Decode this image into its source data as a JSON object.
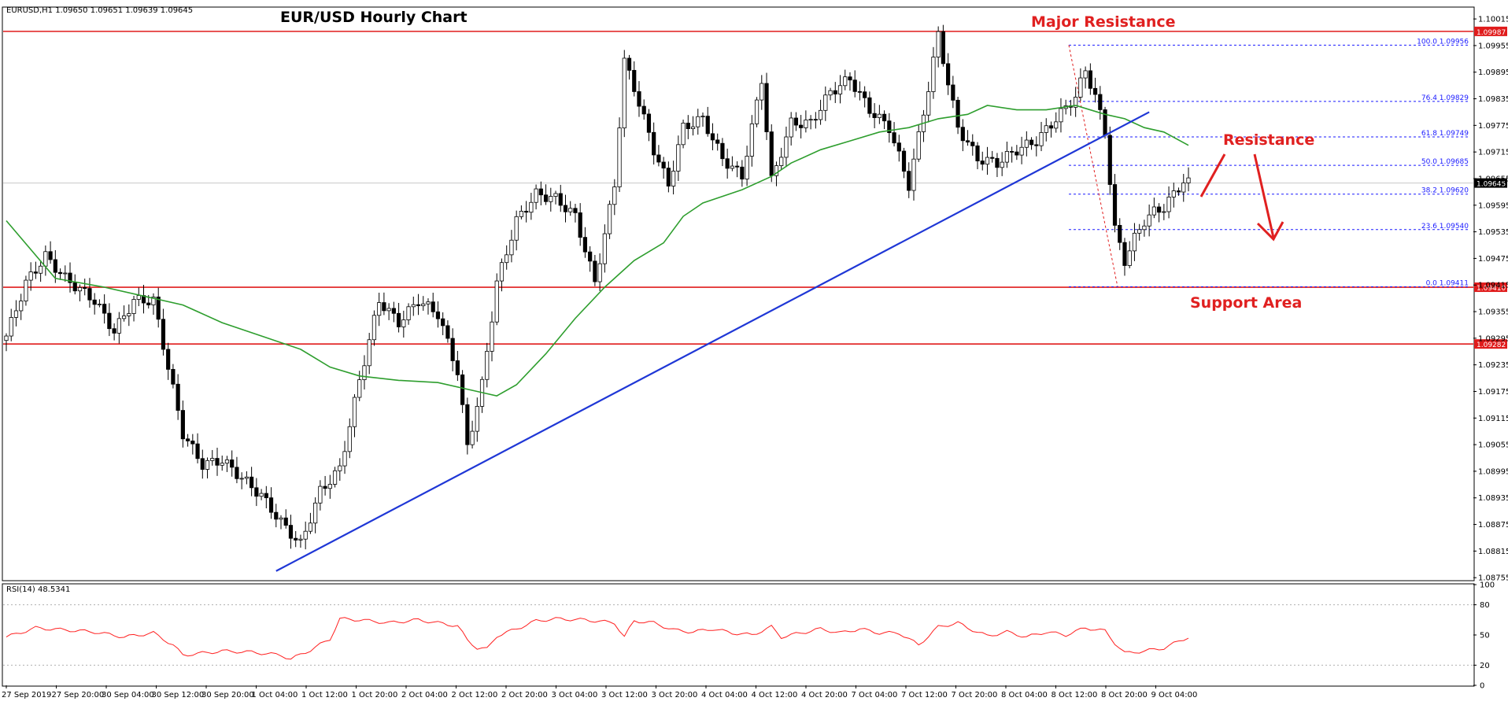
{
  "window": {
    "header": "EURUSD,H1  1.09650 1.09651 1.09639 1.09645",
    "title": "EUR/USD Hourly Chart"
  },
  "annotations": {
    "major_resistance": "Major Resistance",
    "resistance": "Resistance",
    "support_area": "Support Area"
  },
  "colors": {
    "bull": "#ffffff",
    "bear": "#000000",
    "wick": "#000000",
    "ma": "#2e9e2e",
    "trendline": "#1f37d6",
    "horizontal": "#e01b1b",
    "fib": "#1a1aff",
    "rsi": "#ff2020",
    "annotation": "#e02020"
  },
  "chart_data": [
    {
      "type": "candlestick",
      "symbol": "EURUSD",
      "timeframe": "H1",
      "ylim": [
        1.0875,
        1.1004
      ],
      "y_ticks": [
        "1.10015",
        "1.09955",
        "1.09895",
        "1.09835",
        "1.09775",
        "1.09715",
        "1.09655",
        "1.09595",
        "1.09535",
        "1.09475",
        "1.09415",
        "1.09355",
        "1.09295",
        "1.09235",
        "1.09175",
        "1.09115",
        "1.09055",
        "1.08995",
        "1.08935",
        "1.08875",
        "1.08815",
        "1.08755"
      ],
      "x_ticks": [
        "27 Sep 2019",
        "27 Sep 20:00",
        "30 Sep 04:00",
        "30 Sep 12:00",
        "30 Sep 20:00",
        "1 Oct 04:00",
        "1 Oct 12:00",
        "1 Oct 20:00",
        "2 Oct 04:00",
        "2 Oct 12:00",
        "2 Oct 20:00",
        "3 Oct 04:00",
        "3 Oct 12:00",
        "3 Oct 20:00",
        "4 Oct 04:00",
        "4 Oct 12:00",
        "4 Oct 20:00",
        "7 Oct 04:00",
        "7 Oct 12:00",
        "7 Oct 20:00",
        "8 Oct 04:00",
        "8 Oct 12:00",
        "8 Oct 20:00",
        "9 Oct 04:00"
      ],
      "ohlc_anchors": [
        [
          0,
          1.0924,
          1.093
        ],
        [
          4,
          1.0936,
          1.0942
        ],
        [
          8,
          1.0944,
          1.0948
        ],
        [
          12,
          1.094,
          1.0943
        ],
        [
          18,
          1.0943,
          1.0938
        ],
        [
          22,
          1.0938,
          1.0931
        ],
        [
          26,
          1.0934,
          1.0938
        ],
        [
          30,
          1.0944,
          1.0938
        ],
        [
          34,
          1.0936,
          1.0918
        ],
        [
          36,
          1.0918,
          1.0908
        ],
        [
          40,
          1.0905,
          1.0901
        ],
        [
          44,
          1.09,
          1.0902
        ],
        [
          48,
          1.09,
          1.0898
        ],
        [
          52,
          1.0897,
          1.0894
        ],
        [
          56,
          1.0887,
          1.0888
        ],
        [
          60,
          1.0886,
          1.0883
        ],
        [
          64,
          1.0888,
          1.0895
        ],
        [
          68,
          1.0896,
          1.09
        ],
        [
          72,
          1.0888,
          1.092
        ],
        [
          76,
          1.093,
          1.0938
        ],
        [
          80,
          1.0938,
          1.0933
        ],
        [
          84,
          1.0933,
          1.0938
        ],
        [
          88,
          1.0937,
          1.0935
        ],
        [
          92,
          1.0933,
          1.0922
        ],
        [
          94,
          1.0922,
          1.0905
        ],
        [
          97,
          1.0914,
          1.0919
        ],
        [
          100,
          1.0922,
          1.0942
        ],
        [
          104,
          1.0948,
          1.0956
        ],
        [
          108,
          1.0958,
          1.0962
        ],
        [
          112,
          1.096,
          1.0961
        ],
        [
          116,
          1.096,
          1.0957
        ],
        [
          120,
          1.0956,
          1.0942
        ],
        [
          124,
          1.0944,
          1.0964
        ],
        [
          126,
          1.097,
          1.0992
        ],
        [
          128,
          1.099,
          1.0986
        ],
        [
          132,
          1.098,
          1.0972
        ],
        [
          135,
          1.097,
          1.0964
        ],
        [
          138,
          1.097,
          1.0977
        ],
        [
          142,
          1.098,
          1.0979
        ],
        [
          146,
          1.0979,
          1.097
        ],
        [
          150,
          1.0972,
          1.0966
        ],
        [
          154,
          1.097,
          1.0988
        ],
        [
          156,
          1.0988,
          1.0965
        ],
        [
          160,
          1.0965,
          1.0978
        ],
        [
          164,
          1.0982,
          1.0978
        ],
        [
          168,
          1.098,
          1.0985
        ],
        [
          172,
          1.0987,
          1.0988
        ],
        [
          176,
          1.0984,
          1.0981
        ],
        [
          180,
          1.098,
          1.0977
        ],
        [
          184,
          1.0976,
          1.0964
        ],
        [
          188,
          1.097,
          1.0986
        ],
        [
          190,
          1.099,
          1.0998
        ],
        [
          192,
          1.0996,
          1.0987
        ],
        [
          194,
          1.0984,
          1.0977
        ],
        [
          198,
          1.0975,
          1.097
        ],
        [
          202,
          1.097,
          1.0969
        ],
        [
          206,
          1.097,
          1.0972
        ],
        [
          210,
          1.0972,
          1.0974
        ],
        [
          214,
          1.0976,
          1.0979
        ],
        [
          218,
          1.098,
          1.0984
        ],
        [
          220,
          1.0988,
          1.099
        ],
        [
          222,
          1.0988,
          1.0984
        ],
        [
          224,
          1.0981,
          1.0976
        ],
        [
          226,
          1.0972,
          1.0954
        ],
        [
          228,
          1.0952,
          1.0947
        ],
        [
          230,
          1.0948,
          1.0952
        ],
        [
          232,
          1.0954,
          1.0956
        ],
        [
          234,
          1.0955,
          1.0958
        ],
        [
          236,
          1.0957,
          1.0959
        ],
        [
          238,
          1.096,
          1.0962
        ],
        [
          240,
          1.0962,
          1.0965
        ],
        [
          241,
          1.0965,
          1.09645
        ]
      ],
      "moving_average": [
        [
          0,
          1.0956
        ],
        [
          10,
          1.0943
        ],
        [
          20,
          1.0941
        ],
        [
          28,
          1.0939
        ],
        [
          36,
          1.0937
        ],
        [
          44,
          1.0933
        ],
        [
          52,
          1.093
        ],
        [
          60,
          1.0927
        ],
        [
          66,
          1.0923
        ],
        [
          72,
          1.0921
        ],
        [
          80,
          1.092
        ],
        [
          88,
          1.09195
        ],
        [
          96,
          1.09175
        ],
        [
          100,
          1.09165
        ],
        [
          104,
          1.0919
        ],
        [
          110,
          1.0926
        ],
        [
          116,
          1.0934
        ],
        [
          122,
          1.0941
        ],
        [
          128,
          1.0947
        ],
        [
          134,
          1.0951
        ],
        [
          138,
          1.0957
        ],
        [
          142,
          1.096
        ],
        [
          150,
          1.0963
        ],
        [
          156,
          1.0966
        ],
        [
          160,
          1.0969
        ],
        [
          166,
          1.0972
        ],
        [
          172,
          1.0974
        ],
        [
          178,
          1.0976
        ],
        [
          184,
          1.0977
        ],
        [
          190,
          1.0979
        ],
        [
          196,
          1.098
        ],
        [
          200,
          1.0982
        ],
        [
          206,
          1.0981
        ],
        [
          212,
          1.0981
        ],
        [
          218,
          1.0982
        ],
        [
          224,
          1.098
        ],
        [
          228,
          1.0979
        ],
        [
          232,
          1.0977
        ],
        [
          236,
          1.0976
        ],
        [
          241,
          1.0973
        ]
      ],
      "trendline": {
        "from": [
          55,
          1.0877
        ],
        "to": [
          233,
          1.09805
        ]
      },
      "horizontal_levels": [
        {
          "price": 1.09987,
          "label": "1.09987"
        },
        {
          "price": 1.0941,
          "label": "1.09410"
        },
        {
          "price": 1.09282,
          "label": "1.09282"
        }
      ],
      "current_price": {
        "price": 1.09645,
        "label": "1.09645"
      },
      "fibonacci": {
        "levels": [
          {
            "price": 1.09956,
            "label": "100.0  1.09956"
          },
          {
            "price": 1.09829,
            "label": "76.4  1.09829"
          },
          {
            "price": 1.09749,
            "label": "61.8  1.09749"
          },
          {
            "price": 1.09685,
            "label": "50.0  1.09685"
          },
          {
            "price": 1.0962,
            "label": "38.2  1.09620"
          },
          {
            "price": 1.0954,
            "label": "23.6  1.09540"
          },
          {
            "price": 1.09411,
            "label": "0.0  1.09411"
          }
        ]
      }
    },
    {
      "type": "line",
      "name": "RSI(14) 48.5341",
      "ylim": [
        0,
        100
      ],
      "y_ticks": [
        100,
        80,
        50,
        20,
        0
      ],
      "anchors": [
        [
          0,
          48
        ],
        [
          6,
          57
        ],
        [
          12,
          55
        ],
        [
          18,
          53
        ],
        [
          24,
          48
        ],
        [
          30,
          52
        ],
        [
          34,
          40
        ],
        [
          36,
          30
        ],
        [
          40,
          32
        ],
        [
          44,
          34
        ],
        [
          50,
          33
        ],
        [
          56,
          30
        ],
        [
          58,
          26
        ],
        [
          62,
          35
        ],
        [
          66,
          46
        ],
        [
          68,
          66
        ],
        [
          72,
          65
        ],
        [
          78,
          62
        ],
        [
          84,
          65
        ],
        [
          88,
          62
        ],
        [
          92,
          59
        ],
        [
          94,
          45
        ],
        [
          96,
          37
        ],
        [
          98,
          36
        ],
        [
          100,
          49
        ],
        [
          104,
          56
        ],
        [
          108,
          64
        ],
        [
          112,
          66
        ],
        [
          118,
          65
        ],
        [
          124,
          62
        ],
        [
          126,
          48
        ],
        [
          128,
          64
        ],
        [
          132,
          62
        ],
        [
          136,
          55
        ],
        [
          140,
          53
        ],
        [
          144,
          56
        ],
        [
          148,
          52
        ],
        [
          152,
          50
        ],
        [
          156,
          58
        ],
        [
          158,
          48
        ],
        [
          162,
          52
        ],
        [
          166,
          56
        ],
        [
          170,
          52
        ],
        [
          174,
          56
        ],
        [
          178,
          52
        ],
        [
          182,
          52
        ],
        [
          186,
          40
        ],
        [
          190,
          58
        ],
        [
          194,
          62
        ],
        [
          196,
          57
        ],
        [
          200,
          49
        ],
        [
          204,
          53
        ],
        [
          208,
          48
        ],
        [
          212,
          53
        ],
        [
          216,
          50
        ],
        [
          220,
          57
        ],
        [
          224,
          54
        ],
        [
          226,
          42
        ],
        [
          228,
          32
        ],
        [
          232,
          34
        ],
        [
          236,
          37
        ],
        [
          241,
          48
        ]
      ]
    }
  ]
}
